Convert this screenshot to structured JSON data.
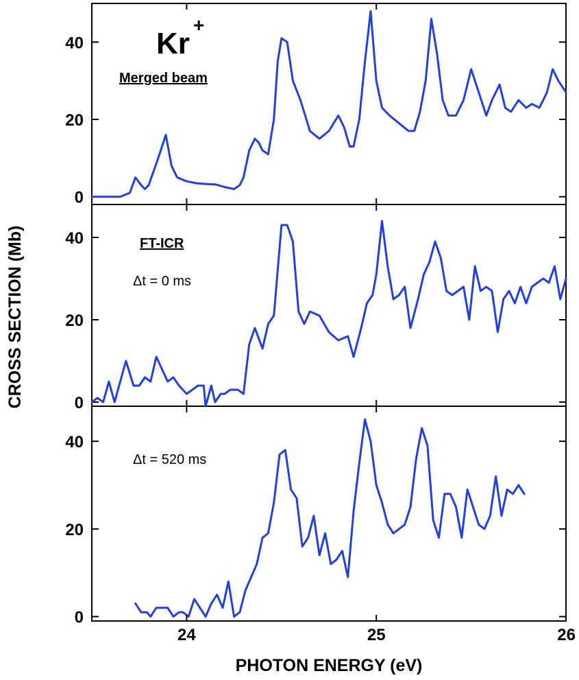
{
  "chart_data": {
    "type": "line",
    "xlabel": "PHOTON ENERGY (eV)",
    "ylabel": "CROSS SECTION (Mb)",
    "xlim": [
      23.5,
      26.0
    ],
    "x_ticks": [
      "24",
      "25",
      "26"
    ],
    "x_tick_values": [
      24,
      25,
      26
    ],
    "line_color": "#1f3fe0",
    "panels": [
      {
        "ylim": [
          -2,
          50
        ],
        "y_ticks": [
          "0",
          "20",
          "40"
        ],
        "y_tick_values": [
          0,
          20,
          40
        ],
        "labels": {
          "ion": "Kr",
          "charge": "+",
          "method": "Merged beam",
          "delay": ""
        },
        "series": [
          {
            "x": [
              23.5,
              23.6,
              23.65,
              23.7,
              23.73,
              23.76,
              23.78,
              23.8,
              23.85,
              23.89,
              23.92,
              23.95,
              24.0,
              24.05,
              24.1,
              24.15,
              24.2,
              24.25,
              24.28,
              24.3,
              24.33,
              24.36,
              24.38,
              24.4,
              24.43,
              24.46,
              24.48,
              24.5,
              24.53,
              24.56,
              24.6,
              24.65,
              24.7,
              24.75,
              24.8,
              24.83,
              24.86,
              24.88,
              24.91,
              24.94,
              24.97,
              25.0,
              25.03,
              25.07,
              25.12,
              25.17,
              25.2,
              25.23,
              25.26,
              25.29,
              25.32,
              25.35,
              25.38,
              25.42,
              25.46,
              25.5,
              25.54,
              25.58,
              25.61,
              25.65,
              25.68,
              25.71,
              25.75,
              25.79,
              25.82,
              25.86,
              25.9,
              25.93,
              25.96,
              26.0
            ],
            "y": [
              0,
              0,
              0,
              1,
              5,
              3,
              2,
              3,
              10,
              16,
              8,
              5,
              4,
              3.5,
              3.3,
              3.2,
              2.5,
              2,
              3,
              5,
              12,
              15,
              14,
              12,
              11,
              20,
              35,
              41,
              40,
              30,
              25,
              17,
              15,
              17,
              21,
              18,
              13,
              13,
              20,
              35,
              48,
              30,
              23,
              21,
              19,
              17,
              17,
              22,
              30,
              46,
              37,
              25,
              21,
              21,
              25,
              33,
              27,
              21,
              25,
              29,
              23,
              22,
              25,
              23,
              24,
              23,
              27,
              33,
              30,
              27
            ]
          }
        ]
      },
      {
        "ylim": [
          -1,
          48
        ],
        "y_ticks": [
          "0",
          "20",
          "40"
        ],
        "y_tick_values": [
          0,
          20,
          40
        ],
        "labels": {
          "ion": "",
          "charge": "",
          "method": "FT-ICR",
          "delay": "Δt = 0 ms"
        },
        "series": [
          {
            "x": [
              23.5,
              23.53,
              23.56,
              23.59,
              23.62,
              23.65,
              23.68,
              23.72,
              23.75,
              23.78,
              23.81,
              23.84,
              23.87,
              23.9,
              23.93,
              23.96,
              24.0,
              24.03,
              24.06,
              24.09,
              24.1,
              24.13,
              24.15,
              24.18,
              24.2,
              24.23,
              24.27,
              24.3,
              24.33,
              24.36,
              24.4,
              24.43,
              24.46,
              24.5,
              24.53,
              24.56,
              24.59,
              24.62,
              24.65,
              24.7,
              24.75,
              24.8,
              24.85,
              24.88,
              24.92,
              24.95,
              24.98,
              25.0,
              25.03,
              25.06,
              25.09,
              25.12,
              25.15,
              25.18,
              25.22,
              25.25,
              25.28,
              25.31,
              25.34,
              25.37,
              25.4,
              25.43,
              25.46,
              25.49,
              25.52,
              25.55,
              25.58,
              25.61,
              25.64,
              25.67,
              25.7,
              25.73,
              25.76,
              25.79,
              25.82,
              25.85,
              25.88,
              25.91,
              25.94,
              25.97,
              26.0
            ],
            "y": [
              0,
              1,
              0,
              5,
              0,
              5,
              10,
              4,
              4,
              6,
              5,
              11,
              8,
              5,
              6,
              4,
              2,
              3,
              4,
              4,
              -1,
              4,
              0,
              2,
              2,
              3,
              3,
              2,
              14,
              18,
              13,
              19,
              21,
              43,
              43,
              39,
              22,
              19,
              22,
              21,
              17,
              15,
              16,
              11,
              18,
              24,
              26,
              31,
              44,
              33,
              25,
              26,
              28,
              18,
              25,
              31,
              34,
              39,
              35,
              27,
              26,
              27,
              28,
              20,
              33,
              27,
              28,
              27,
              17,
              25,
              27,
              24,
              28,
              24,
              28,
              29,
              30,
              29,
              33,
              25,
              30
            ]
          }
        ]
      },
      {
        "ylim": [
          -1,
          48
        ],
        "y_ticks": [
          "0",
          "20",
          "40"
        ],
        "y_tick_values": [
          0,
          20,
          40
        ],
        "labels": {
          "ion": "",
          "charge": "",
          "method": "",
          "delay": "Δt = 520 ms"
        },
        "series": [
          {
            "x": [
              23.73,
              23.76,
              23.79,
              23.81,
              23.84,
              23.87,
              23.9,
              23.93,
              23.96,
              23.98,
              24.01,
              24.04,
              24.07,
              24.1,
              24.13,
              24.16,
              24.19,
              24.22,
              24.25,
              24.28,
              24.31,
              24.34,
              24.37,
              24.4,
              24.43,
              24.46,
              24.49,
              24.52,
              24.55,
              24.58,
              24.61,
              24.64,
              24.67,
              24.7,
              24.73,
              24.76,
              24.79,
              24.82,
              24.85,
              24.88,
              24.91,
              24.94,
              24.97,
              25.0,
              25.03,
              25.06,
              25.09,
              25.12,
              25.15,
              25.18,
              25.21,
              25.24,
              25.27,
              25.3,
              25.33,
              25.36,
              25.39,
              25.42,
              25.45,
              25.48,
              25.51,
              25.54,
              25.57,
              25.6,
              25.63,
              25.66,
              25.69,
              25.72,
              25.75,
              25.78
            ],
            "y": [
              3,
              1,
              1,
              0,
              2,
              2,
              2,
              0,
              1,
              1,
              0,
              4,
              2,
              0,
              3,
              5,
              2,
              8,
              0,
              1,
              6,
              9,
              12,
              18,
              19,
              26,
              37,
              38,
              29,
              27,
              16,
              18,
              23,
              14,
              19,
              12,
              13,
              15,
              9,
              24,
              35,
              45,
              40,
              30,
              26,
              21,
              19,
              20,
              21,
              25,
              36,
              43,
              39,
              22,
              18,
              28,
              28,
              25,
              18,
              29,
              25,
              21,
              20,
              23,
              32,
              23,
              29,
              28,
              30,
              28
            ]
          }
        ]
      }
    ]
  }
}
